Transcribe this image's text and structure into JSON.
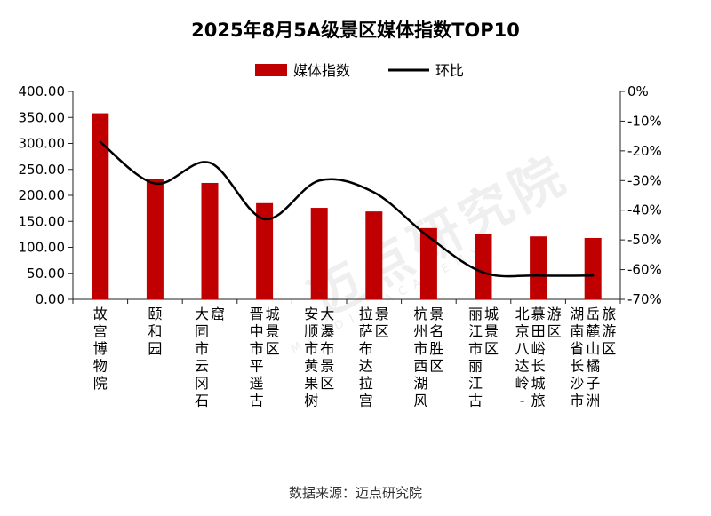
{
  "chart_data": {
    "type": "bar",
    "title": "2025年8月5A级景区媒体指数TOP10",
    "categories": [
      "故宫博物院",
      "颐和园",
      "大同市云冈石窟",
      "晋中市平遥古城景区",
      "安顺市黄果树大瀑布景区",
      "拉萨布达拉宫景区",
      "杭州市西湖风景名胜区",
      "丽江市丽江古城景区",
      "北京八达岭 - 慕田峪长城旅游区",
      "湖南省长沙市岳麓山橘子洲旅游区"
    ],
    "series": [
      {
        "name": "媒体指数",
        "type": "bar",
        "axis": "left",
        "color": "#c00000",
        "values": [
          358,
          232,
          224,
          185,
          176,
          169,
          137,
          126,
          121,
          118
        ]
      },
      {
        "name": "环比",
        "type": "line",
        "axis": "right",
        "color": "#000000",
        "values": [
          -17,
          -31,
          -24,
          -43,
          -30,
          -34,
          -49,
          -61,
          -62,
          -62
        ]
      }
    ],
    "left_axis": {
      "min": 0,
      "max": 400,
      "step": 50,
      "ticks": [
        "0.00",
        "50.00",
        "100.00",
        "150.00",
        "200.00",
        "250.00",
        "300.00",
        "350.00",
        "400.00"
      ]
    },
    "right_axis": {
      "min": -70,
      "max": 0,
      "step": 10,
      "ticks": [
        "-70%",
        "-60%",
        "-50%",
        "-40%",
        "-30%",
        "-20%",
        "-10%",
        "0%"
      ]
    },
    "legend_position": "top-center",
    "grid": false
  },
  "source": "数据来源：迈点研究院",
  "watermark": {
    "main": "迈点研究院",
    "sub": "MEADIN ACADEMY"
  }
}
